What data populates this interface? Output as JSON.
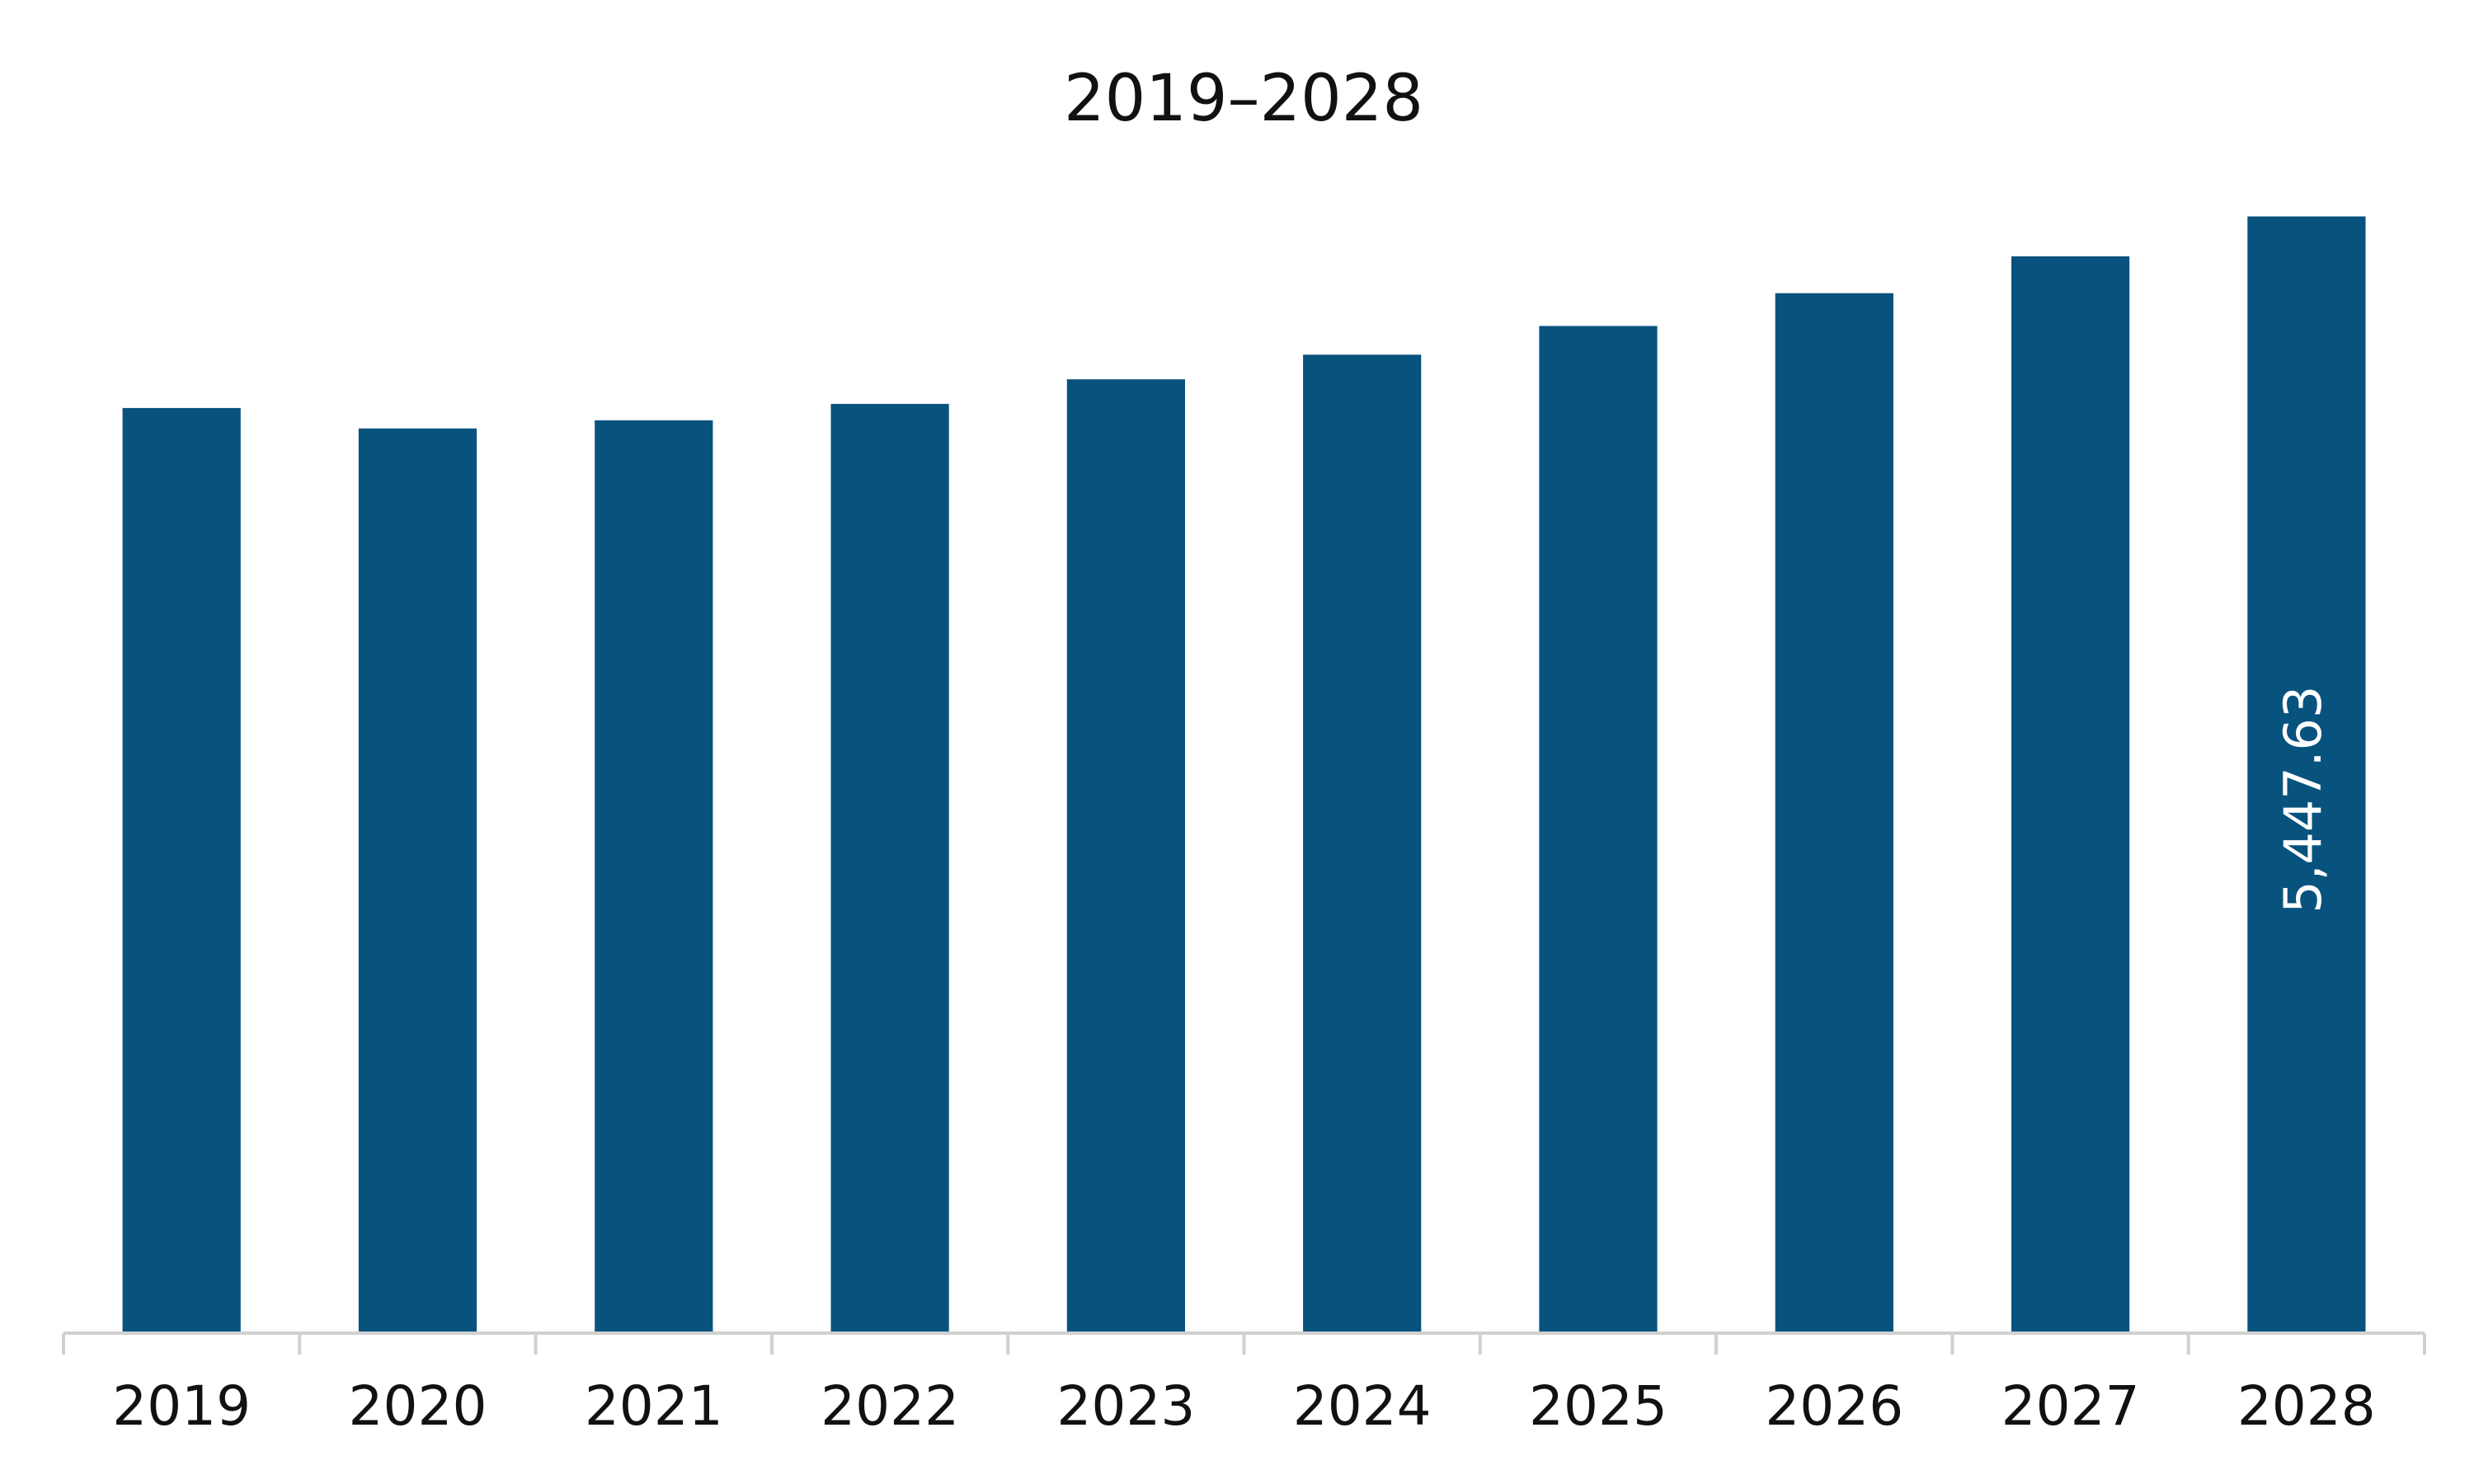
{
  "chart_data": {
    "type": "bar",
    "title": "2019–2028",
    "xlabel": "",
    "ylabel": "",
    "categories": [
      "2019",
      "2020",
      "2021",
      "2022",
      "2023",
      "2024",
      "2025",
      "2026",
      "2027",
      "2028"
    ],
    "values": [
      4513,
      4413,
      4453,
      4533,
      4653,
      4773,
      4913,
      5073,
      5253,
      5447.63
    ],
    "data_labels": [
      "",
      "",
      "",
      "",
      "",
      "",
      "",
      "",
      "",
      "5,447.63"
    ],
    "ylim": [
      0,
      5900
    ],
    "grid": false,
    "legend": "none",
    "colors": {
      "bar": "#08527E",
      "axis": "#D0D0D0",
      "text": "#111111",
      "data_label": "#FFFFFF"
    }
  }
}
